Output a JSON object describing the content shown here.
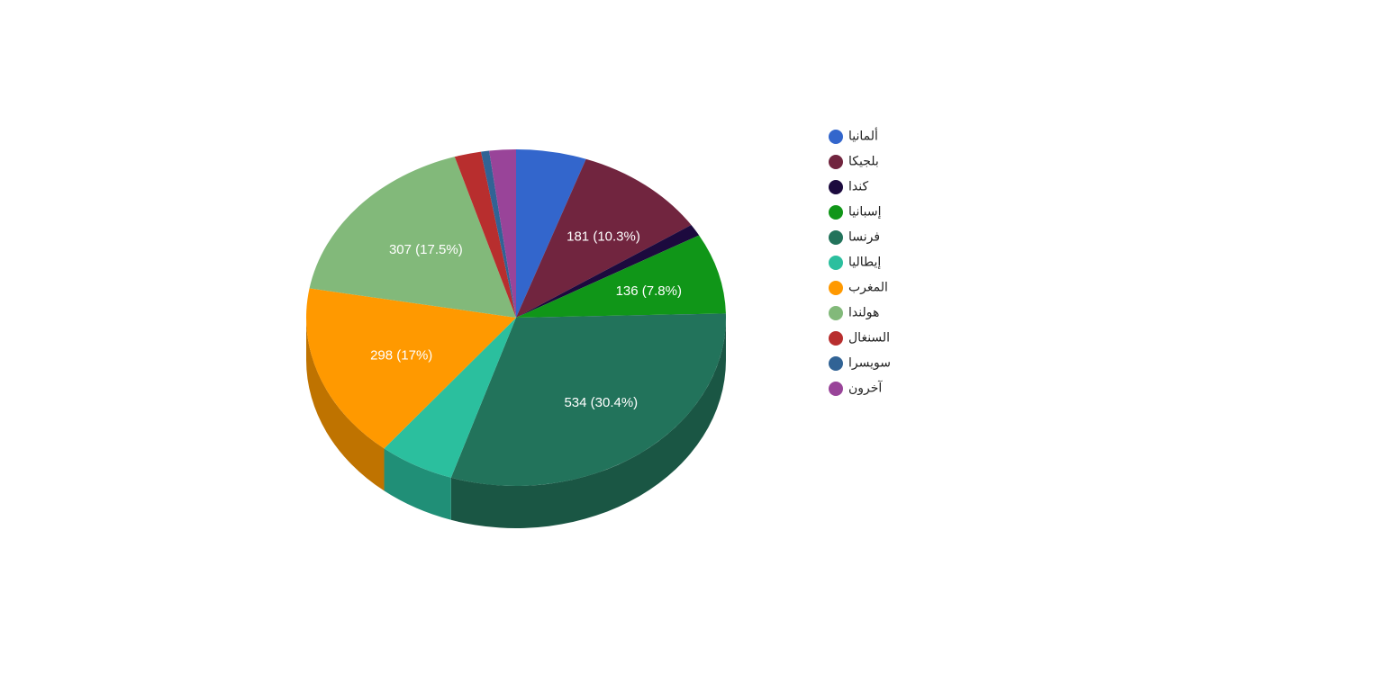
{
  "chart_data": {
    "type": "pie3d",
    "categories": [
      "ألمانيا",
      "بلجيكا",
      "كندا",
      "إسبانيا",
      "فرنسا",
      "إيطاليا",
      "المغرب",
      "هولندا",
      "السنغال",
      "سويسرا",
      "آخرون"
    ],
    "values": [
      95,
      181,
      20,
      136,
      534,
      102,
      298,
      307,
      36,
      11,
      36
    ],
    "value_labels": [
      null,
      "181 (10.3%)",
      null,
      "136 (7.8%)",
      "534 (30.4%)",
      null,
      "298 (17%)",
      "307 (17.5%)",
      null,
      null,
      null
    ],
    "colors": [
      "#3366cc",
      "#71253f",
      "#1c0a3e",
      "#109618",
      "#22735b",
      "#2bbf9e",
      "#ff9900",
      "#82b97a",
      "#b82e2e",
      "#316395",
      "#994499"
    ],
    "legend": "right"
  }
}
